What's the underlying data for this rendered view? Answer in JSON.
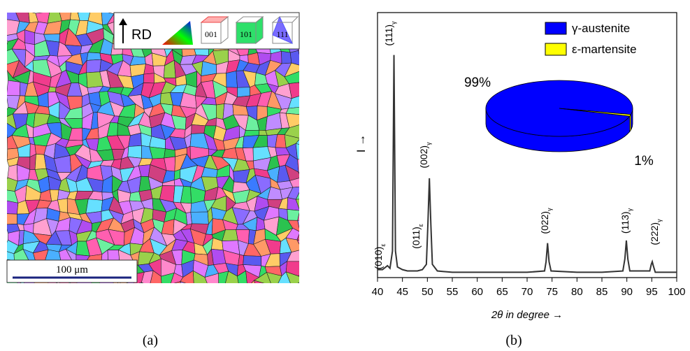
{
  "panel_a": {
    "legend_axis": "RD",
    "cube_labels": [
      "001",
      "101",
      "111"
    ],
    "scale_bar": "100 μm",
    "caption": "(a)"
  },
  "caption_b": "(b)",
  "chart_data": [
    {
      "type": "line",
      "xlabel": "2θ in degree →",
      "ylabel": "I →",
      "x": [
        40,
        41,
        42,
        42.5,
        43,
        43.3,
        43.6,
        44,
        45,
        46,
        48,
        49,
        49.8,
        50.1,
        50.4,
        50.7,
        51,
        52,
        55,
        60,
        65,
        70,
        73.5,
        73.8,
        74.1,
        74.4,
        74.8,
        80,
        85,
        89.2,
        89.6,
        89.9,
        90.2,
        90.6,
        94.6,
        94.9,
        95.1,
        95.3,
        95.7,
        100
      ],
      "series": [
        {
          "color": "#333333",
          "values": [
            3,
            3,
            4.5,
            3.5,
            10,
            84,
            10,
            4,
            3,
            2.5,
            2.5,
            3,
            5,
            20,
            37.5,
            20,
            5,
            2.5,
            2,
            2,
            2,
            2,
            2.5,
            6,
            13,
            6,
            2.5,
            2,
            2,
            2.5,
            7,
            14,
            7,
            2.5,
            2.5,
            5,
            6,
            4.5,
            2,
            2
          ]
        }
      ],
      "xlim": [
        40,
        100
      ],
      "xticks": [
        40,
        45,
        50,
        55,
        60,
        65,
        70,
        75,
        80,
        85,
        90,
        95,
        100
      ],
      "ylim": [
        0,
        100
      ],
      "annotations": [
        {
          "text": "(010)",
          "sub": "ε"
        },
        {
          "text": "(111)",
          "sub": "γ"
        },
        {
          "text": "(011)",
          "sub": "ε"
        },
        {
          "text": "(002)",
          "sub": "γ"
        },
        {
          "text": "(022)",
          "sub": "γ"
        },
        {
          "text": "(113)",
          "sub": "γ"
        },
        {
          "text": "(222)",
          "sub": "γ"
        }
      ]
    },
    {
      "type": "pie",
      "categories": [
        "γ-austenite",
        "ε-martensite"
      ],
      "values": [
        99,
        1
      ],
      "value_labels": [
        "99%",
        "1%"
      ],
      "colors": [
        "#0000ff",
        "#ffff00"
      ]
    }
  ]
}
